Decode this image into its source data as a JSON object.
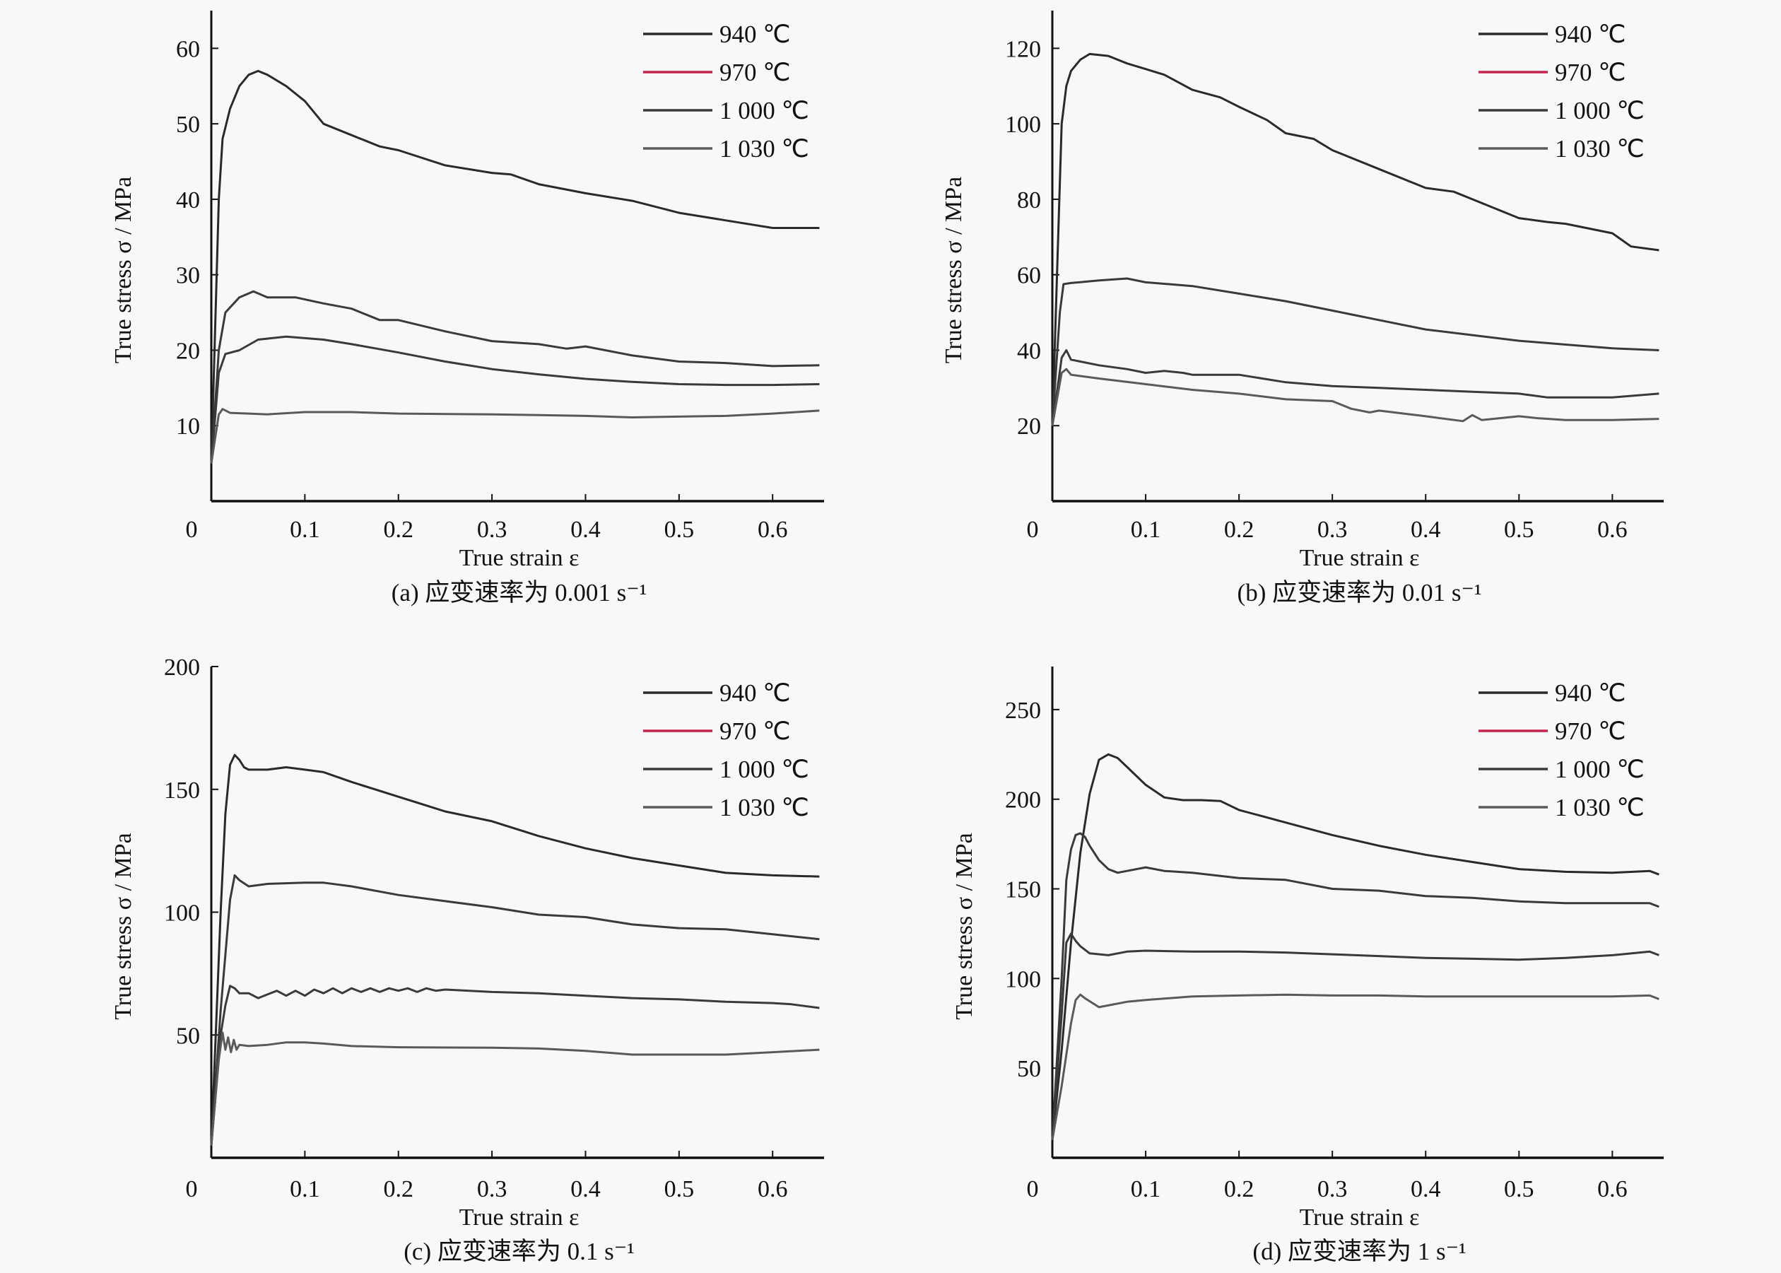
{
  "figure": {
    "legend_labels": [
      "940 ℃",
      "970 ℃",
      "1 000 ℃",
      "1 030 ℃"
    ],
    "xlabel": "True strain ε",
    "ylabel": "True stress σ / MPa"
  },
  "chart_data": [
    {
      "type": "line",
      "panel": "a",
      "caption": "(a) 应变速率为 0.001 s⁻¹",
      "xlabel": "True strain ε",
      "ylabel": "True stress σ / MPa",
      "xlim": [
        0,
        0.655
      ],
      "ylim": [
        0,
        65
      ],
      "xticks": [
        0,
        0.1,
        0.2,
        0.3,
        0.4,
        0.5,
        0.6
      ],
      "xtick_labels": [
        "0",
        "0.1",
        "0.2",
        "0.3",
        "0.4",
        "0.5",
        "0.6"
      ],
      "yticks": [
        10,
        20,
        30,
        40,
        50,
        60
      ],
      "ytick_labels": [
        "10",
        "20",
        "30",
        "40",
        "50",
        "60"
      ],
      "legend": "top-right",
      "grid": false,
      "series": [
        {
          "name": "940 ℃",
          "color": "#2a2a2a",
          "x": [
            0,
            0.008,
            0.012,
            0.02,
            0.03,
            0.04,
            0.05,
            0.06,
            0.08,
            0.1,
            0.12,
            0.15,
            0.18,
            0.2,
            0.25,
            0.3,
            0.32,
            0.35,
            0.4,
            0.45,
            0.5,
            0.55,
            0.6,
            0.65
          ],
          "y": [
            5,
            40,
            48,
            52,
            55,
            56.5,
            57,
            56.5,
            55,
            53,
            50,
            48.5,
            47,
            46.5,
            44.5,
            43.5,
            43.3,
            42,
            40.8,
            39.8,
            38.2,
            37.2,
            36.2,
            36.2
          ]
        },
        {
          "name": "970 ℃",
          "color": "#3a3a3a",
          "x": [
            0,
            0.008,
            0.015,
            0.03,
            0.045,
            0.06,
            0.09,
            0.12,
            0.15,
            0.18,
            0.2,
            0.25,
            0.3,
            0.35,
            0.38,
            0.4,
            0.45,
            0.5,
            0.55,
            0.6,
            0.65
          ],
          "y": [
            5,
            20,
            25,
            27,
            27.8,
            27,
            27,
            26.2,
            25.5,
            24,
            24,
            22.5,
            21.2,
            20.8,
            20.2,
            20.5,
            19.3,
            18.5,
            18.3,
            17.9,
            18
          ]
        },
        {
          "name": "1 000 ℃",
          "color": "#3a3a3a",
          "x": [
            0,
            0.008,
            0.015,
            0.03,
            0.05,
            0.08,
            0.1,
            0.12,
            0.15,
            0.2,
            0.25,
            0.3,
            0.35,
            0.4,
            0.45,
            0.5,
            0.55,
            0.6,
            0.65
          ],
          "y": [
            5,
            17,
            19.5,
            20,
            21.4,
            21.8,
            21.6,
            21.4,
            20.8,
            19.7,
            18.5,
            17.5,
            16.8,
            16.2,
            15.8,
            15.5,
            15.4,
            15.4,
            15.5
          ]
        },
        {
          "name": "1 030 ℃",
          "color": "#5a5a5a",
          "x": [
            0,
            0.008,
            0.012,
            0.02,
            0.04,
            0.06,
            0.1,
            0.15,
            0.2,
            0.3,
            0.4,
            0.45,
            0.5,
            0.55,
            0.6,
            0.65
          ],
          "y": [
            5,
            11.5,
            12.2,
            11.7,
            11.6,
            11.5,
            11.8,
            11.8,
            11.6,
            11.5,
            11.3,
            11.1,
            11.2,
            11.3,
            11.6,
            12
          ]
        }
      ]
    },
    {
      "type": "line",
      "panel": "b",
      "caption": "(b) 应变速率为 0.01 s⁻¹",
      "xlabel": "True strain ε",
      "ylabel": "True stress σ / MPa",
      "xlim": [
        0,
        0.655
      ],
      "ylim": [
        0,
        130
      ],
      "xticks": [
        0,
        0.1,
        0.2,
        0.3,
        0.4,
        0.5,
        0.6
      ],
      "xtick_labels": [
        "0",
        "0.1",
        "0.2",
        "0.3",
        "0.4",
        "0.5",
        "0.6"
      ],
      "yticks": [
        20,
        40,
        60,
        80,
        100,
        120
      ],
      "ytick_labels": [
        "20",
        "40",
        "60",
        "80",
        "100",
        "120"
      ],
      "legend": "top-right",
      "grid": false,
      "series": [
        {
          "name": "940 ℃",
          "color": "#2a2a2a",
          "x": [
            0,
            0.01,
            0.015,
            0.02,
            0.03,
            0.04,
            0.06,
            0.08,
            0.1,
            0.12,
            0.15,
            0.18,
            0.2,
            0.23,
            0.25,
            0.28,
            0.3,
            0.35,
            0.4,
            0.43,
            0.45,
            0.5,
            0.53,
            0.55,
            0.6,
            0.62,
            0.65
          ],
          "y": [
            20,
            100,
            110,
            114,
            117,
            118.5,
            118,
            116,
            114.5,
            113,
            109,
            107,
            104.5,
            101,
            97.5,
            96,
            93,
            88,
            83,
            82,
            80,
            75,
            74,
            73.5,
            71,
            67.5,
            66.5
          ]
        },
        {
          "name": "970 ℃",
          "color": "#3a3a3a",
          "x": [
            0,
            0.008,
            0.012,
            0.02,
            0.05,
            0.08,
            0.1,
            0.15,
            0.2,
            0.25,
            0.3,
            0.35,
            0.4,
            0.45,
            0.5,
            0.55,
            0.6,
            0.65
          ],
          "y": [
            20,
            50,
            57.5,
            57.8,
            58.5,
            59,
            58,
            57,
            55,
            53,
            50.5,
            48,
            45.5,
            44,
            42.5,
            41.5,
            40.5,
            40
          ]
        },
        {
          "name": "1 000 ℃",
          "color": "#3a3a3a",
          "x": [
            0,
            0.01,
            0.015,
            0.02,
            0.05,
            0.08,
            0.1,
            0.12,
            0.14,
            0.15,
            0.2,
            0.25,
            0.3,
            0.35,
            0.4,
            0.45,
            0.5,
            0.53,
            0.55,
            0.6,
            0.65
          ],
          "y": [
            20,
            38,
            40,
            37.5,
            36,
            35,
            34,
            34.5,
            34,
            33.5,
            33.5,
            31.5,
            30.5,
            30,
            29.5,
            29,
            28.5,
            27.5,
            27.5,
            27.5,
            28.5
          ]
        },
        {
          "name": "1 030 ℃",
          "color": "#5a5a5a",
          "x": [
            0,
            0.01,
            0.015,
            0.02,
            0.05,
            0.1,
            0.15,
            0.2,
            0.25,
            0.3,
            0.32,
            0.34,
            0.35,
            0.4,
            0.44,
            0.45,
            0.46,
            0.5,
            0.52,
            0.55,
            0.6,
            0.65
          ],
          "y": [
            20,
            34,
            35,
            33.5,
            32.5,
            31,
            29.5,
            28.5,
            27,
            26.5,
            24.5,
            23.5,
            24,
            22.5,
            21.2,
            22.8,
            21.5,
            22.5,
            22,
            21.5,
            21.5,
            21.8
          ]
        }
      ]
    },
    {
      "type": "line",
      "panel": "c",
      "caption": "(c) 应变速率为 0.1 s⁻¹",
      "xlabel": "True strain ε",
      "ylabel": "True stress σ / MPa",
      "xlim": [
        0,
        0.655
      ],
      "ylim": [
        0,
        200
      ],
      "xticks": [
        0,
        0.1,
        0.2,
        0.3,
        0.4,
        0.5,
        0.6
      ],
      "xtick_labels": [
        "0",
        "0.1",
        "0.2",
        "0.3",
        "0.4",
        "0.5",
        "0.6"
      ],
      "yticks": [
        50,
        100,
        150,
        200
      ],
      "ytick_labels": [
        "50",
        "100",
        "150",
        "200"
      ],
      "legend": "top-right",
      "grid": false,
      "series": [
        {
          "name": "940 ℃",
          "color": "#2a2a2a",
          "x": [
            0,
            0.01,
            0.015,
            0.02,
            0.025,
            0.03,
            0.035,
            0.04,
            0.06,
            0.08,
            0.1,
            0.12,
            0.15,
            0.2,
            0.25,
            0.3,
            0.35,
            0.4,
            0.45,
            0.5,
            0.55,
            0.6,
            0.65
          ],
          "y": [
            5,
            100,
            140,
            160,
            164,
            162,
            159,
            158,
            158,
            159,
            158,
            157,
            153,
            147,
            141,
            137,
            131,
            126,
            122,
            119,
            116,
            115,
            114.5
          ]
        },
        {
          "name": "970 ℃",
          "color": "#3a3a3a",
          "x": [
            0,
            0.01,
            0.02,
            0.025,
            0.03,
            0.04,
            0.06,
            0.1,
            0.12,
            0.15,
            0.2,
            0.25,
            0.3,
            0.35,
            0.4,
            0.45,
            0.5,
            0.55,
            0.6,
            0.65
          ],
          "y": [
            5,
            60,
            105,
            115,
            113,
            110.5,
            111.5,
            112,
            112,
            110.5,
            107,
            104.5,
            102,
            99,
            98,
            95,
            93.5,
            93,
            91,
            89
          ]
        },
        {
          "name": "1 000 ℃",
          "color": "#3a3a3a",
          "x": [
            0,
            0.01,
            0.015,
            0.02,
            0.025,
            0.03,
            0.04,
            0.05,
            0.06,
            0.07,
            0.08,
            0.09,
            0.1,
            0.11,
            0.12,
            0.13,
            0.14,
            0.15,
            0.16,
            0.17,
            0.18,
            0.19,
            0.2,
            0.21,
            0.22,
            0.23,
            0.24,
            0.25,
            0.3,
            0.35,
            0.4,
            0.45,
            0.5,
            0.55,
            0.6,
            0.62,
            0.65
          ],
          "y": [
            5,
            50,
            62,
            70,
            69,
            67,
            67,
            65,
            66.5,
            68,
            66,
            68,
            66,
            68.5,
            67,
            69,
            67,
            69,
            67.5,
            69,
            67.5,
            69,
            68,
            69,
            67.5,
            69,
            68,
            68.5,
            67.5,
            67,
            66,
            65,
            64.5,
            63.5,
            63,
            62.5,
            61
          ]
        },
        {
          "name": "1 030 ℃",
          "color": "#5a5a5a",
          "x": [
            0,
            0.008,
            0.012,
            0.015,
            0.018,
            0.021,
            0.024,
            0.027,
            0.03,
            0.04,
            0.06,
            0.08,
            0.1,
            0.12,
            0.15,
            0.2,
            0.3,
            0.35,
            0.4,
            0.45,
            0.5,
            0.55,
            0.6,
            0.65
          ],
          "y": [
            5,
            40,
            51,
            44,
            49,
            43,
            48,
            44,
            46,
            45.5,
            46,
            47,
            47,
            46.5,
            45.5,
            45,
            44.8,
            44.5,
            43.5,
            42,
            42,
            42,
            43,
            44
          ]
        }
      ]
    },
    {
      "type": "line",
      "panel": "d",
      "caption": "(d) 应变速率为 1 s⁻¹",
      "xlabel": "True strain ε",
      "ylabel": "True stress σ / MPa",
      "xlim": [
        0,
        0.655
      ],
      "ylim": [
        0,
        274
      ],
      "xticks": [
        0,
        0.1,
        0.2,
        0.3,
        0.4,
        0.5,
        0.6
      ],
      "xtick_labels": [
        "0",
        "0.1",
        "0.2",
        "0.3",
        "0.4",
        "0.5",
        "0.6"
      ],
      "yticks": [
        50,
        100,
        150,
        200,
        250
      ],
      "ytick_labels": [
        "50",
        "100",
        "150",
        "200",
        "250"
      ],
      "legend": "top-right",
      "grid": false,
      "series": [
        {
          "name": "940 ℃",
          "color": "#2a2a2a",
          "x": [
            0,
            0.01,
            0.02,
            0.03,
            0.04,
            0.05,
            0.06,
            0.07,
            0.08,
            0.1,
            0.12,
            0.14,
            0.16,
            0.18,
            0.2,
            0.25,
            0.3,
            0.35,
            0.4,
            0.45,
            0.5,
            0.55,
            0.6,
            0.64,
            0.65
          ],
          "y": [
            10,
            60,
            120,
            170,
            203,
            222,
            225,
            223,
            218,
            208,
            201,
            199.5,
            199.5,
            199,
            194,
            187,
            180,
            174,
            169,
            165,
            161,
            159.5,
            159,
            160,
            158
          ]
        },
        {
          "name": "970 ℃",
          "color": "#3a3a3a",
          "x": [
            0,
            0.01,
            0.015,
            0.02,
            0.025,
            0.03,
            0.035,
            0.04,
            0.05,
            0.06,
            0.07,
            0.08,
            0.1,
            0.12,
            0.15,
            0.2,
            0.25,
            0.3,
            0.35,
            0.4,
            0.45,
            0.5,
            0.55,
            0.6,
            0.64,
            0.65
          ],
          "y": [
            10,
            100,
            155,
            172,
            180,
            181,
            179,
            174,
            166,
            161,
            159,
            160,
            162,
            160,
            159,
            156,
            155,
            150,
            149,
            146,
            145,
            143,
            142,
            142,
            142,
            140
          ]
        },
        {
          "name": "1 000 ℃",
          "color": "#3a3a3a",
          "x": [
            0,
            0.01,
            0.015,
            0.02,
            0.025,
            0.03,
            0.04,
            0.06,
            0.08,
            0.1,
            0.15,
            0.2,
            0.25,
            0.3,
            0.35,
            0.4,
            0.45,
            0.5,
            0.55,
            0.6,
            0.64,
            0.65
          ],
          "y": [
            10,
            80,
            120,
            125,
            121,
            118,
            114,
            113,
            115,
            115.5,
            115,
            115,
            114.5,
            113.5,
            112.5,
            111.5,
            111,
            110.5,
            111.5,
            113,
            115,
            113
          ]
        },
        {
          "name": "1 030 ℃",
          "color": "#5a5a5a",
          "x": [
            0,
            0.01,
            0.02,
            0.025,
            0.03,
            0.035,
            0.05,
            0.06,
            0.08,
            0.1,
            0.15,
            0.2,
            0.25,
            0.3,
            0.35,
            0.4,
            0.5,
            0.6,
            0.64,
            0.65
          ],
          "y": [
            10,
            40,
            75,
            88,
            91,
            89,
            84,
            85,
            87,
            88,
            90,
            90.5,
            91,
            90.5,
            90.5,
            90,
            90,
            90,
            90.5,
            88.5
          ]
        }
      ]
    }
  ]
}
